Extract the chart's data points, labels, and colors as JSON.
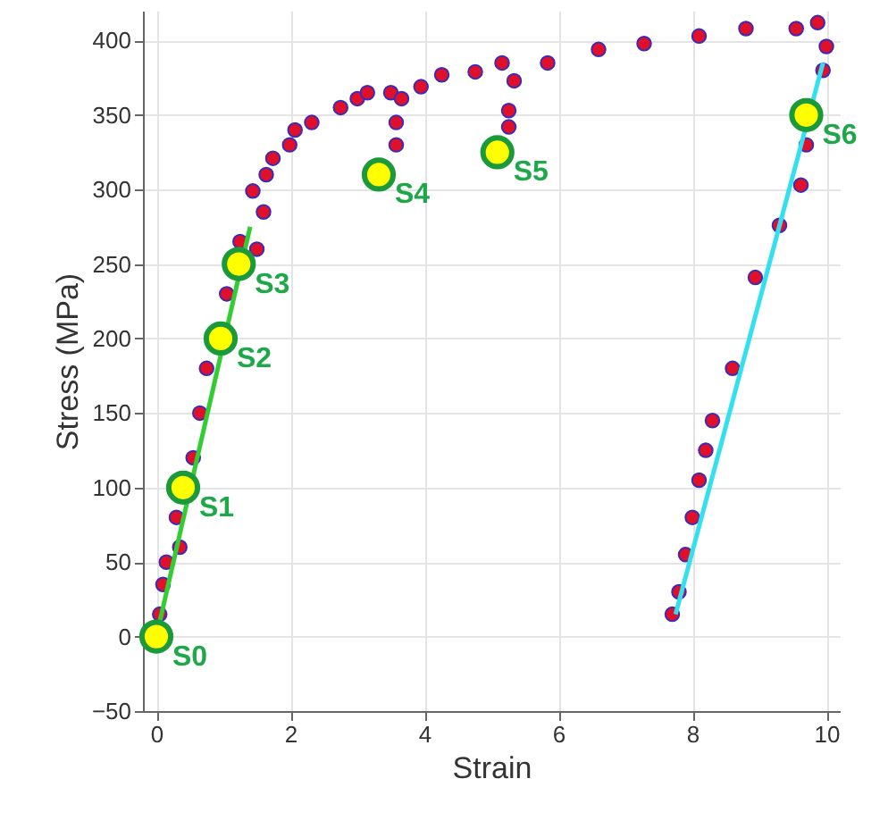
{
  "chart_data": {
    "type": "scatter",
    "xlabel": "Strain",
    "ylabel": "Stress (MPa)",
    "xlim": [
      -0.2,
      10.2
    ],
    "ylim": [
      -50,
      420
    ],
    "xticks": [
      0,
      2,
      4,
      6,
      8,
      10
    ],
    "yticks": [
      -50,
      0,
      50,
      100,
      150,
      200,
      250,
      300,
      350,
      400
    ],
    "grid": true,
    "marker": "circle",
    "series": [
      {
        "color": "#e0102a",
        "x": [
          0.05,
          0.1,
          0.15,
          0.35,
          0.3,
          0.55,
          0.65,
          0.75,
          1.05,
          1.25,
          1.5,
          1.44,
          1.6,
          1.64,
          1.74,
          1.99,
          2.07,
          2.32,
          2.75,
          3.0,
          3.15,
          3.5,
          3.66,
          3.58,
          3.58,
          3.95,
          4.26,
          4.76,
          5.16,
          5.34,
          5.26,
          5.26,
          5.84,
          6.6,
          7.28,
          8.1,
          8.8,
          9.55,
          9.87,
          10.0,
          9.95,
          9.7,
          9.62,
          9.3,
          8.94,
          8.6,
          8.3,
          8.2,
          8.1,
          8.0,
          7.9,
          7.8,
          7.7
        ],
        "values": [
          15,
          35,
          50,
          60,
          80,
          120,
          150,
          180,
          230,
          265,
          260,
          299,
          285,
          310,
          321,
          330,
          340,
          345,
          355,
          361,
          365,
          365,
          361,
          345,
          330,
          369,
          377,
          379,
          385,
          373,
          353,
          342,
          385,
          394,
          398,
          403,
          408,
          408,
          412,
          396,
          380,
          330,
          303,
          276,
          241,
          180,
          145,
          125,
          105,
          80,
          55,
          30,
          15
        ]
      },
      {
        "type": "line",
        "marker": "none",
        "color": "#33cc33",
        "x": [
          0,
          1.4
        ],
        "values": [
          0,
          275
        ]
      },
      {
        "type": "line",
        "marker": "none",
        "color": "#33e0f0",
        "x": [
          7.75,
          9.95
        ],
        "values": [
          15,
          385
        ]
      },
      {
        "color": "#ffff00",
        "x": [
          0,
          0.4,
          0.96,
          1.23,
          3.32,
          5.09,
          9.7
        ],
        "values": [
          0,
          100,
          200,
          250,
          310,
          325,
          350
        ]
      }
    ],
    "annotations": [
      {
        "text": "S0",
        "x": 0,
        "y": 0
      },
      {
        "text": "S1",
        "x": 0.4,
        "y": 100
      },
      {
        "text": "S2",
        "x": 0.96,
        "y": 200
      },
      {
        "text": "S3",
        "x": 1.23,
        "y": 250
      },
      {
        "text": "S4",
        "x": 3.32,
        "y": 310
      },
      {
        "text": "S5",
        "x": 5.09,
        "y": 325
      },
      {
        "text": "S6",
        "x": 9.7,
        "y": 350
      }
    ]
  }
}
